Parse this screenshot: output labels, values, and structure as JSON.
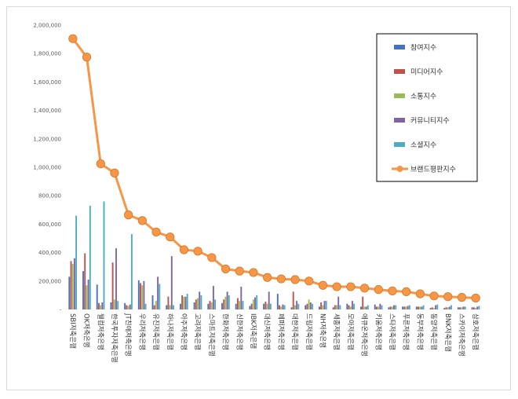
{
  "chart_data": {
    "type": "bar",
    "title": "",
    "xlabel": "",
    "ylabel": "",
    "ylim": [
      0,
      2000000
    ],
    "yticks": [
      0,
      200000,
      400000,
      600000,
      800000,
      1000000,
      1200000,
      1400000,
      1600000,
      1800000,
      2000000
    ],
    "ytick_labels": [
      "-",
      "200,000",
      "400,000",
      "600,000",
      "800,000",
      "1,000,000",
      "1,200,000",
      "1,400,000",
      "1,600,000",
      "1,800,000",
      "2,000,000"
    ],
    "grid": false,
    "legend_position": "top-right",
    "categories": [
      "SBI저축은행",
      "OK저축은행",
      "웰컴저축은행",
      "한국투자저축은행",
      "JT친애저축은행",
      "우리저축은행",
      "유진저축은행",
      "하나저축은행",
      "아주저축은행",
      "고려저축은행",
      "스마트저축은행",
      "한화저축은행",
      "신한저축은행",
      "IBK저축은행",
      "대신저축은행",
      "페퍼저축은행",
      "대한저축은행",
      "드림저축은행",
      "NH저축은행",
      "세종저축은행",
      "모아저축은행",
      "애큐온저축은행",
      "키움저축은행",
      "스타저축은행",
      "푸른저축은행",
      "동부저축은행",
      "동양저축은행",
      "BNK저축은행",
      "스카이저축은행",
      "삼호저축은행"
    ],
    "series": [
      {
        "name": "참여지수",
        "color": "#4472c4",
        "type": "bar",
        "values": [
          230000,
          270000,
          175000,
          50000,
          45000,
          205000,
          100000,
          30000,
          40000,
          50000,
          40000,
          45000,
          40000,
          25000,
          40000,
          110000,
          15000,
          30000,
          20000,
          15000,
          40000,
          20000,
          35000,
          15000,
          20000,
          20000,
          10000,
          10000,
          15000,
          15000
        ]
      },
      {
        "name": "미디어지수",
        "color": "#c0504d",
        "type": "bar",
        "values": [
          340000,
          395000,
          45000,
          330000,
          30000,
          185000,
          30000,
          90000,
          100000,
          70000,
          60000,
          70000,
          80000,
          40000,
          55000,
          30000,
          125000,
          40000,
          50000,
          30000,
          30000,
          90000,
          20000,
          20000,
          20000,
          20000,
          15000,
          15000,
          15000,
          15000
        ]
      },
      {
        "name": "소통지수",
        "color": "#9bbb59",
        "type": "bar",
        "values": [
          320000,
          170000,
          30000,
          70000,
          25000,
          170000,
          60000,
          30000,
          90000,
          80000,
          50000,
          90000,
          60000,
          70000,
          40000,
          20000,
          30000,
          70000,
          30000,
          30000,
          20000,
          20000,
          20000,
          20000,
          20000,
          20000,
          10000,
          15000,
          15000,
          10000
        ]
      },
      {
        "name": "커뮤니티지수",
        "color": "#8064a2",
        "type": "bar",
        "values": [
          360000,
          210000,
          50000,
          430000,
          35000,
          200000,
          230000,
          375000,
          90000,
          125000,
          165000,
          125000,
          160000,
          85000,
          125000,
          35000,
          60000,
          50000,
          60000,
          90000,
          60000,
          20000,
          40000,
          30000,
          25000,
          20000,
          30000,
          20000,
          20000,
          20000
        ]
      },
      {
        "name": "소셜지수",
        "color": "#4bacc6",
        "type": "bar",
        "values": [
          660000,
          730000,
          760000,
          60000,
          530000,
          40000,
          180000,
          30000,
          110000,
          100000,
          70000,
          100000,
          60000,
          100000,
          40000,
          30000,
          40000,
          40000,
          60000,
          30000,
          40000,
          30000,
          30000,
          30000,
          30000,
          30000,
          35000,
          30000,
          20000,
          25000
        ]
      },
      {
        "name": "브랜드평판지수",
        "color": "#f79646",
        "type": "line",
        "values": [
          1905000,
          1775000,
          1025000,
          960000,
          665000,
          625000,
          545000,
          510000,
          420000,
          410000,
          365000,
          285000,
          270000,
          260000,
          225000,
          215000,
          210000,
          200000,
          170000,
          160000,
          160000,
          150000,
          140000,
          130000,
          125000,
          110000,
          95000,
          90000,
          85000,
          80000
        ]
      }
    ]
  }
}
